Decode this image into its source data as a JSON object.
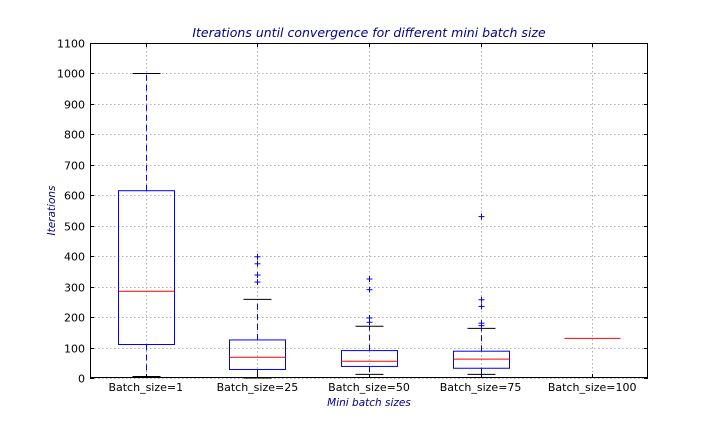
{
  "chart_data": {
    "type": "box",
    "title": "Iterations until convergence for different mini batch size",
    "xlabel": "Mini batch sizes",
    "ylabel": "Iterations",
    "ylim": [
      0,
      1100
    ],
    "yticks": [
      0,
      100,
      200,
      300,
      400,
      500,
      600,
      700,
      800,
      900,
      1000,
      1100
    ],
    "grid": true,
    "categories": [
      "Batch_size=1",
      "Batch_size=25",
      "Batch_size=50",
      "Batch_size=75",
      "Batch_size=100"
    ],
    "boxes": [
      {
        "category": "Batch_size=1",
        "whisker_low": 5,
        "q1": 110,
        "median": 285,
        "q3": 615,
        "whisker_high": 1000,
        "fliers": []
      },
      {
        "category": "Batch_size=25",
        "whisker_low": 0,
        "q1": 28,
        "median": 68,
        "q3": 125,
        "whisker_high": 258,
        "fliers": [
          315,
          338,
          375,
          398
        ]
      },
      {
        "category": "Batch_size=50",
        "whisker_low": 12,
        "q1": 38,
        "median": 55,
        "q3": 90,
        "whisker_high": 170,
        "fliers": [
          183,
          197,
          290,
          325
        ]
      },
      {
        "category": "Batch_size=75",
        "whisker_low": 12,
        "q1": 32,
        "median": 62,
        "q3": 88,
        "whisker_high": 163,
        "fliers": [
          172,
          180,
          235,
          257,
          530
        ]
      },
      {
        "category": "Batch_size=100",
        "whisker_low": 130,
        "q1": 130,
        "median": 130,
        "q3": 130,
        "whisker_high": 130,
        "fliers": []
      }
    ],
    "colors": {
      "box": "#0000ff",
      "median": "#ff0000",
      "whisker": "#0000ff",
      "cap": "#000000",
      "flier": "#0000ff",
      "grid": "#b0b0b0",
      "title": "#00008b",
      "axis_label": "#00008b"
    }
  }
}
